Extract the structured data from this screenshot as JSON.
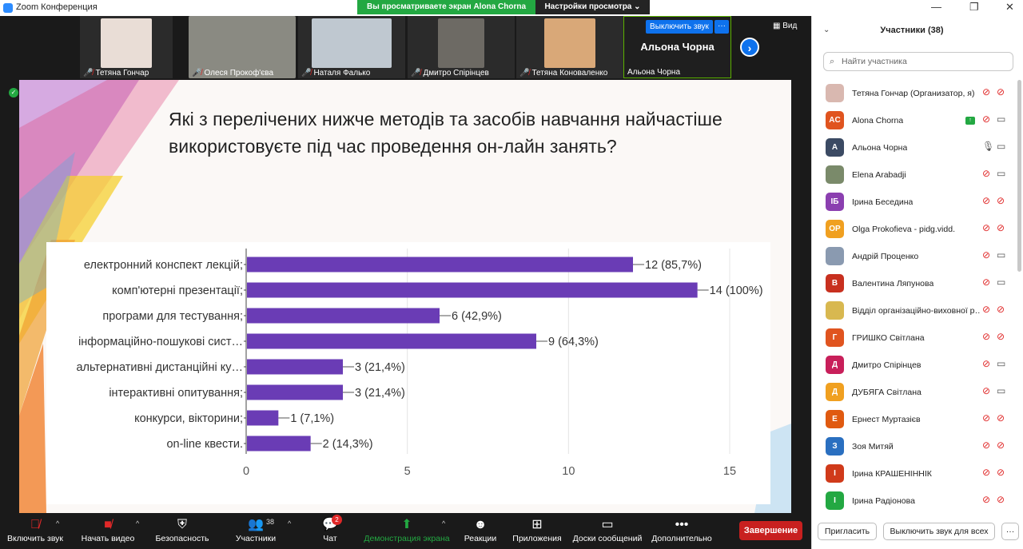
{
  "window": {
    "title": "Zoom Конференция",
    "share_banner": "Вы просматриваете экран Alona Chorna",
    "view_options": "Настройки просмотра ⌄"
  },
  "video_strip": {
    "tiles": [
      {
        "name": "Тетяна Гончар"
      },
      {
        "name": "Олеся Прокоф'єва"
      },
      {
        "name": "Наталя Фалько"
      },
      {
        "name": "Дмитро Спірінцев"
      },
      {
        "name": "Тетяна Коноваленко"
      }
    ],
    "active_tile": {
      "name": "Альона Чорна",
      "big_name": "Альона Чорна",
      "unmute_label": "Выключить звук",
      "more_label": "···"
    },
    "view_label": "Вид"
  },
  "slide": {
    "question": "Які з перелічених нижче методів та засобів навчання найчастіше використовуєте  під час проведення он-лайн занять?"
  },
  "chart_data": {
    "type": "bar",
    "orientation": "horizontal",
    "categories": [
      "електронний конспект лекцій;",
      "комп'ютерні презентації;",
      "програми для тестування;",
      "інформаційно-пошукові сист…",
      "альтернативні дистанційні ку…",
      "інтерактивні опитування;",
      "конкурси, вікторини;",
      "on-line квести."
    ],
    "values": [
      12,
      14,
      6,
      9,
      3,
      3,
      1,
      2
    ],
    "data_labels": [
      "12 (85,7%)",
      "14 (100%)",
      "6 (42,9%)",
      "9 (64,3%)",
      "3 (21,4%)",
      "3 (21,4%)",
      "1 (7,1%)",
      "2 (14,3%)"
    ],
    "x_ticks": [
      "0",
      "5",
      "10",
      "15"
    ],
    "xlim": [
      0,
      15
    ],
    "bar_color": "#6a3cb5",
    "grid": true
  },
  "toolbar": {
    "unmute": "Включить звук",
    "start_video": "Начать видео",
    "security": "Безопасность",
    "participants": "Участники",
    "participants_count": "38",
    "chat": "Чат",
    "chat_badge": "2",
    "share": "Демонстрация экрана",
    "reactions": "Реакции",
    "apps": "Приложения",
    "whiteboards": "Доски сообщений",
    "more": "Дополнительно",
    "end": "Завершение"
  },
  "panel": {
    "header": "Участники (38)",
    "search_placeholder": "Найти участника",
    "participants": [
      {
        "name": "Тетяна Гончар (Организатор, я)",
        "avatar": "",
        "color": "#d9b8b0",
        "photo": true,
        "mic": "muted",
        "cam": "off"
      },
      {
        "name": "Alona Chorna",
        "avatar": "AC",
        "color": "#e0541f",
        "photo": false,
        "sharing": true,
        "mic": "muted",
        "cam": "on"
      },
      {
        "name": "Альона Чорна",
        "avatar": "A",
        "color": "#3b4a63",
        "photo": false,
        "mic": "on",
        "cam": "on"
      },
      {
        "name": "Elena Arabadji",
        "avatar": "",
        "color": "#7a8a6a",
        "photo": true,
        "mic": "muted",
        "cam": "on"
      },
      {
        "name": "Ірина Беседина",
        "avatar": "ІБ",
        "color": "#8b3fb0",
        "photo": false,
        "mic": "muted",
        "cam": "off"
      },
      {
        "name": "Olga Prokofieva - pidg.vidd.",
        "avatar": "OP",
        "color": "#f0a020",
        "photo": false,
        "mic": "muted",
        "cam": "off"
      },
      {
        "name": "Андрій Проценко",
        "avatar": "",
        "color": "#8a9ab0",
        "photo": true,
        "mic": "muted",
        "cam": "on"
      },
      {
        "name": "Валентина Ляпунова",
        "avatar": "В",
        "color": "#c8301f",
        "photo": false,
        "mic": "muted",
        "cam": "on"
      },
      {
        "name": "Відділ організаційно-виховної р…",
        "avatar": "",
        "color": "#d8b850",
        "photo": true,
        "mic": "muted",
        "cam": "off"
      },
      {
        "name": "ГРИШКО Світлана",
        "avatar": "Г",
        "color": "#e0541f",
        "photo": false,
        "mic": "muted",
        "cam": "off"
      },
      {
        "name": "Дмитро Спірінцев",
        "avatar": "Д",
        "color": "#c81f5a",
        "photo": false,
        "mic": "muted",
        "cam": "on"
      },
      {
        "name": "ДУБЯГА Світлана",
        "avatar": "Д",
        "color": "#f0a020",
        "photo": false,
        "mic": "muted",
        "cam": "on"
      },
      {
        "name": "Ернест Муртазієв",
        "avatar": "Е",
        "color": "#e05a10",
        "photo": false,
        "mic": "muted",
        "cam": "off"
      },
      {
        "name": "Зоя Митяй",
        "avatar": "З",
        "color": "#2a6fc0",
        "photo": false,
        "mic": "muted",
        "cam": "off"
      },
      {
        "name": "Ірина КРАШЕНІННІК",
        "avatar": "І",
        "color": "#d03a1a",
        "photo": false,
        "mic": "muted",
        "cam": "off"
      },
      {
        "name": "Ірина Радіонова",
        "avatar": "І",
        "color": "#23a842",
        "photo": false,
        "mic": "muted",
        "cam": "off"
      }
    ],
    "invite": "Пригласить",
    "mute_all": "Выключить звук для всех",
    "more": "···"
  }
}
